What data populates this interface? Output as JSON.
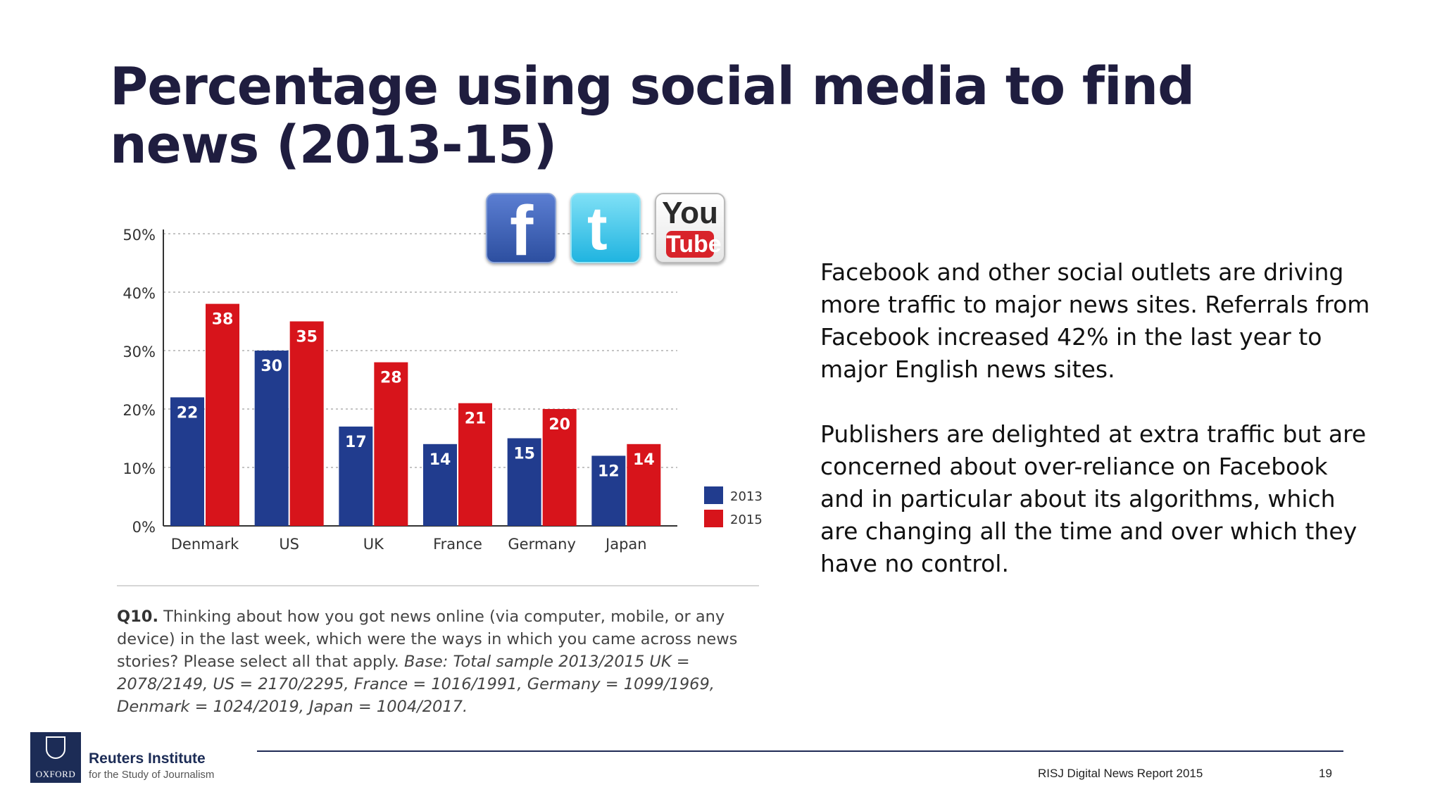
{
  "slide": {
    "title": "Percentage using social media to find news (2013-15)"
  },
  "logos": {
    "facebook": "f",
    "twitter": "t",
    "youtube_you": "You",
    "youtube_tube": "Tube"
  },
  "side_text": {
    "p1": "Facebook and other social outlets are driving more traffic to major news sites. Referrals from Facebook increased 42% in the last year to major English news sites.",
    "p2": "Publishers are delighted at extra traffic but are concerned about over-reliance on Facebook and in particular about its algorithms, which are changing all the time and over which they have no control."
  },
  "question": {
    "label": "Q10.",
    "text": "Thinking about how you got news online (via computer, mobile, or any device) in the last week, which were the ways in which you came across news stories? Please select all that apply.",
    "base": "Base: Total sample 2013/2015 UK = 2078/2149, US = 2170/2295, France = 1016/1991, Germany = 1099/1969, Denmark = 1024/2019, Japan = 1004/2017."
  },
  "footer": {
    "institute_name": "Reuters Institute",
    "institute_sub": "for the Study of Journalism",
    "oxford_label": "OXFORD",
    "report": "RISJ Digital News Report 2015",
    "page": "19"
  },
  "chart_data": {
    "type": "bar",
    "categories": [
      "Denmark",
      "US",
      "UK",
      "France",
      "Germany",
      "Japan"
    ],
    "series": [
      {
        "name": "2013",
        "values": [
          22,
          30,
          17,
          14,
          15,
          12
        ],
        "color": "#213c8e"
      },
      {
        "name": "2015",
        "values": [
          38,
          35,
          28,
          21,
          20,
          14
        ],
        "color": "#d7141b"
      }
    ],
    "yticks": [
      "0%",
      "10%",
      "20%",
      "30%",
      "40%",
      "50%"
    ],
    "ylim": [
      0,
      50
    ],
    "grid": true,
    "legend_position": "right",
    "data_labels": true
  }
}
